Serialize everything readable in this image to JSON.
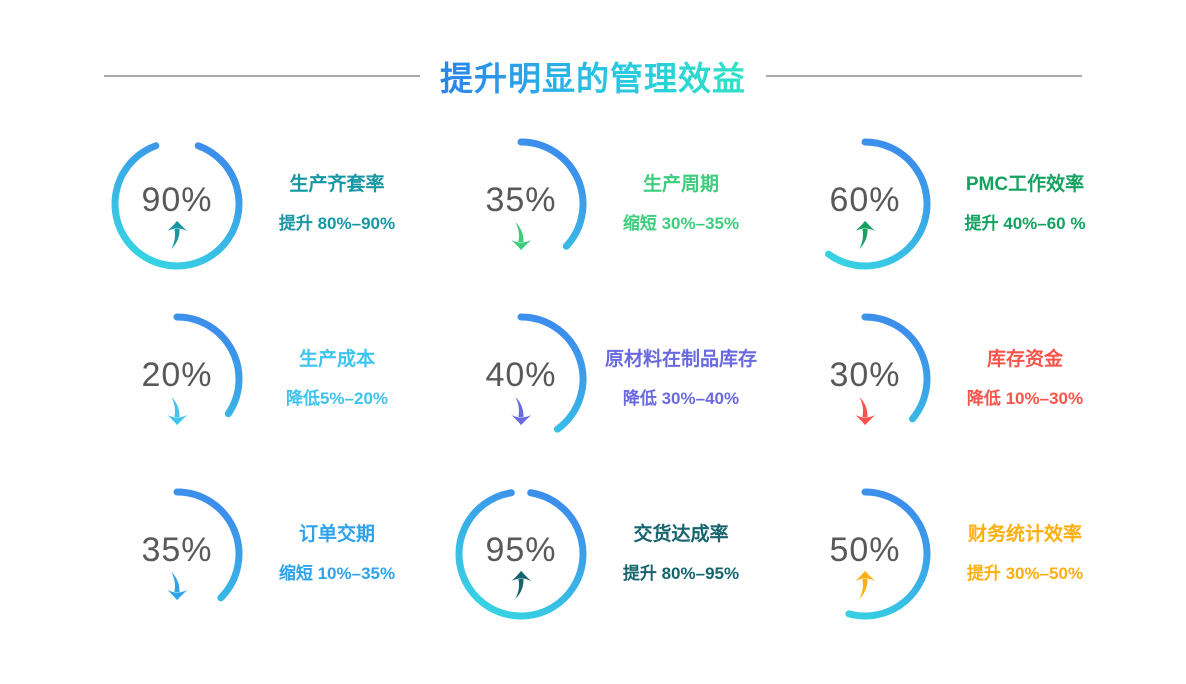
{
  "slide": {
    "title": "提升明显的管理效益",
    "divider_color": "#a8a8a8",
    "title_gradient": [
      "#2c82ea",
      "#27c6e4",
      "#2fe2c4"
    ],
    "background": "#ffffff"
  },
  "chart_data": {
    "type": "gauge-grid",
    "title": "提升明显的管理效益",
    "layout": {
      "rows": 3,
      "columns": 3,
      "legend": "none",
      "grid": "off"
    },
    "ring_gradient": [
      "#3d87ec",
      "#36d9e2"
    ],
    "value_color": "#595959",
    "gauges": [
      {
        "value": 90,
        "display": "90%",
        "metric": "生产齐套率",
        "change": "提升 80%–90%",
        "direction": "up",
        "accent": "#1797a3",
        "arc_sweep_deg": 320
      },
      {
        "value": 35,
        "display": "35%",
        "metric": "生产周期",
        "change": "缩短 30%–35%",
        "direction": "down",
        "accent": "#3ecd7d",
        "arc_sweep_deg": 133
      },
      {
        "value": 60,
        "display": "60%",
        "metric": "PMC工作效率",
        "change": "提升 40%–60 %",
        "direction": "up",
        "accent": "#13a260",
        "arc_sweep_deg": 216
      },
      {
        "value": 20,
        "display": "20%",
        "metric": "生产成本",
        "change": "降低5%–20%",
        "direction": "down",
        "accent": "#3fc3ef",
        "arc_sweep_deg": 124
      },
      {
        "value": 40,
        "display": "40%",
        "metric": "原材料在制品库存",
        "change": "降低 30%–40%",
        "direction": "down",
        "accent": "#6a6ae0",
        "arc_sweep_deg": 144
      },
      {
        "value": 30,
        "display": "30%",
        "metric": "库存资金",
        "change": "降低 10%–30%",
        "direction": "down",
        "accent": "#f9544b",
        "arc_sweep_deg": 130
      },
      {
        "value": 35,
        "display": "35%",
        "metric": "订单交期",
        "change": "缩短 10%–35%",
        "direction": "down",
        "accent": "#2ea3ec",
        "arc_sweep_deg": 135
      },
      {
        "value": 95,
        "display": "95%",
        "metric": "交货达成率",
        "change": "提升 80%–95%",
        "direction": "up",
        "accent": "#17646e",
        "arc_sweep_deg": 342
      },
      {
        "value": 50,
        "display": "50%",
        "metric": "财务统计效率",
        "change": "提升 30%–50%",
        "direction": "up",
        "accent": "#ffae10",
        "arc_sweep_deg": 195
      }
    ]
  }
}
